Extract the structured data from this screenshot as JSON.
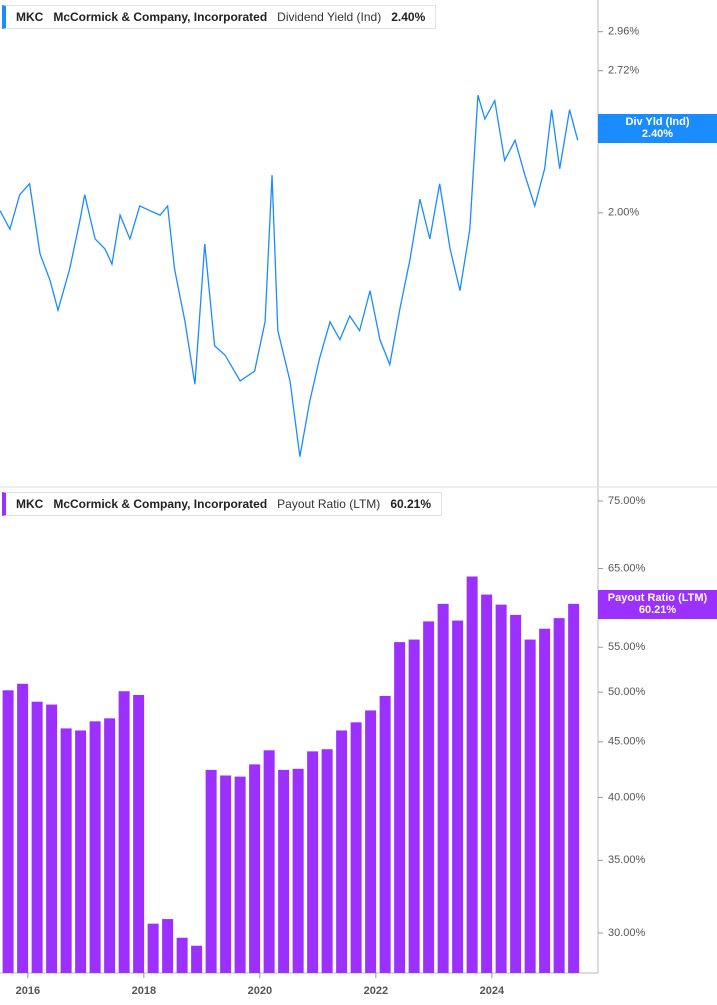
{
  "chart_data": [
    {
      "type": "line",
      "ticker": "MKC",
      "company": "McCormick & Company, Incorporated",
      "metric": "Dividend Yield (Ind)",
      "tag_label": "Div Yld (Ind)",
      "current": {
        "value": 2.4,
        "label": "2.40%"
      },
      "color": "#1a8cff",
      "log_scale": true,
      "x": [
        2015.52,
        2015.69,
        2015.86,
        2016.03,
        2016.21,
        2016.38,
        2016.52,
        2016.72,
        2016.9,
        2016.98,
        2017.16,
        2017.33,
        2017.45,
        2017.59,
        2017.76,
        2017.93,
        2018.1,
        2018.28,
        2018.41,
        2018.53,
        2018.71,
        2018.88,
        2019.05,
        2019.22,
        2019.4,
        2019.66,
        2019.91,
        2020.09,
        2020.21,
        2020.31,
        2020.52,
        2020.69,
        2020.86,
        2021.03,
        2021.21,
        2021.38,
        2021.55,
        2021.72,
        2021.9,
        2022.07,
        2022.24,
        2022.41,
        2022.59,
        2022.76,
        2022.93,
        2023.1,
        2023.28,
        2023.45,
        2023.62,
        2023.76,
        2023.88,
        2024.05,
        2024.22,
        2024.4,
        2024.57,
        2024.74,
        2024.91,
        2025.03,
        2025.17,
        2025.34,
        2025.48
      ],
      "values": [
        2.01,
        1.93,
        2.08,
        2.13,
        1.83,
        1.73,
        1.62,
        1.77,
        1.97,
        2.08,
        1.89,
        1.85,
        1.79,
        1.99,
        1.89,
        2.03,
        2.01,
        1.99,
        2.03,
        1.77,
        1.58,
        1.38,
        1.87,
        1.5,
        1.47,
        1.39,
        1.42,
        1.58,
        2.17,
        1.55,
        1.39,
        1.18,
        1.33,
        1.46,
        1.58,
        1.52,
        1.6,
        1.55,
        1.69,
        1.52,
        1.44,
        1.62,
        1.81,
        2.06,
        1.89,
        2.13,
        1.85,
        1.69,
        1.93,
        2.58,
        2.45,
        2.55,
        2.24,
        2.34,
        2.17,
        2.03,
        2.2,
        2.5,
        2.2,
        2.5,
        2.34
      ],
      "xlim": [
        2015.52,
        2025.83
      ],
      "ylim": [
        1.105,
        3.17
      ],
      "yticks": [
        {
          "value": 2.0,
          "label": "2.00%"
        },
        {
          "value": 2.72,
          "label": "2.72%"
        },
        {
          "value": 2.96,
          "label": "2.96%"
        }
      ]
    },
    {
      "type": "bar",
      "ticker": "MKC",
      "company": "McCormick & Company, Incorporated",
      "metric": "Payout Ratio (LTM)",
      "tag_label": "Payout Ratio (LTM)",
      "current": {
        "value": 60.21,
        "label": "60.21%"
      },
      "color": "#9b30ff",
      "log_scale": true,
      "x": [
        2015.66,
        2015.91,
        2016.16,
        2016.41,
        2016.66,
        2016.91,
        2017.16,
        2017.41,
        2017.66,
        2017.91,
        2018.16,
        2018.41,
        2018.66,
        2018.91,
        2019.16,
        2019.41,
        2019.66,
        2019.91,
        2020.16,
        2020.41,
        2020.66,
        2020.91,
        2021.16,
        2021.41,
        2021.66,
        2021.91,
        2022.16,
        2022.41,
        2022.66,
        2022.91,
        2023.16,
        2023.41,
        2023.66,
        2023.91,
        2024.16,
        2024.41,
        2024.66,
        2024.91,
        2025.16,
        2025.41
      ],
      "values": [
        50.2,
        50.9,
        49.0,
        48.7,
        46.3,
        46.1,
        47.0,
        47.3,
        50.1,
        49.7,
        30.6,
        30.9,
        29.7,
        29.2,
        42.4,
        41.9,
        41.8,
        42.9,
        44.2,
        42.4,
        42.5,
        44.1,
        44.3,
        46.1,
        46.9,
        48.1,
        49.6,
        55.6,
        55.9,
        58.1,
        60.3,
        58.2,
        63.9,
        61.5,
        60.2,
        58.9,
        55.9,
        57.2,
        58.5,
        60.3
      ],
      "xlim": [
        2015.52,
        2025.83
      ],
      "ylim": [
        27.56,
        77.26
      ],
      "yticks": [
        {
          "value": 30,
          "label": "30.00%"
        },
        {
          "value": 35,
          "label": "35.00%"
        },
        {
          "value": 40,
          "label": "40.00%"
        },
        {
          "value": 45,
          "label": "45.00%"
        },
        {
          "value": 50,
          "label": "50.00%"
        },
        {
          "value": 55,
          "label": "55.00%"
        },
        {
          "value": 65,
          "label": "65.00%"
        },
        {
          "value": 75,
          "label": "75.00%"
        }
      ],
      "xticks": [
        2016,
        2018,
        2020,
        2022,
        2024
      ]
    }
  ]
}
